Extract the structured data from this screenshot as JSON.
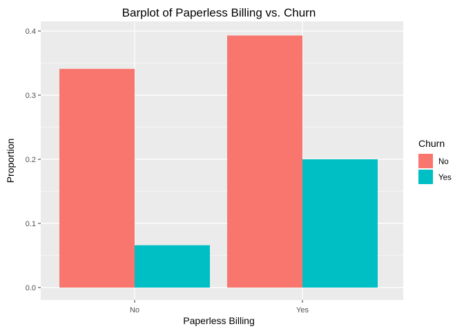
{
  "chart_data": {
    "type": "bar",
    "title": "Barplot of Paperless Billing vs. Churn",
    "xlabel": "Paperless Billing",
    "ylabel": "Proportion",
    "categories": [
      "No",
      "Yes"
    ],
    "series": [
      {
        "name": "No",
        "color": "#F8766D",
        "values": [
          0.341,
          0.393
        ]
      },
      {
        "name": "Yes",
        "color": "#00BFC4",
        "values": [
          0.066,
          0.2
        ]
      }
    ],
    "ylim": [
      0,
      0.4
    ],
    "yticks": [
      "0.0",
      "0.1",
      "0.2",
      "0.3",
      "0.4"
    ],
    "grid": true,
    "legend": {
      "title": "Churn",
      "position": "right"
    },
    "panel_background": "#EBEBEB"
  }
}
